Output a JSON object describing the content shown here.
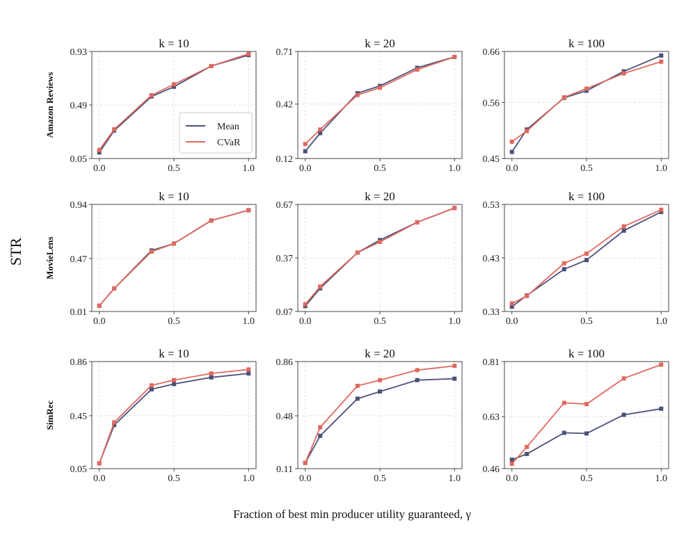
{
  "figure": {
    "ylabel": "STR",
    "xlabel": "Fraction of best min producer utility guaranteed, γ"
  },
  "colors": {
    "mean": "#4a5078",
    "cvar": "#e0685e",
    "grid": "#d9d9d9",
    "frame": "#444444"
  },
  "legend": {
    "items": [
      "Mean",
      "CVaR"
    ],
    "location": "lower-right of top-left panel"
  },
  "chart_data": [
    {
      "type": "line",
      "row_label": "Amazon Reviews",
      "title": "k = 10",
      "x": [
        0.0,
        0.1,
        0.35,
        0.5,
        0.75,
        1.0
      ],
      "xticks": [
        "0.0",
        "0.5",
        "1.0"
      ],
      "xlim": [
        -0.05,
        1.05
      ],
      "ylim": [
        0.05,
        0.93
      ],
      "yticks": [
        "0.05",
        "0.49",
        "0.93"
      ],
      "series": [
        {
          "name": "Mean",
          "values": [
            0.1,
            0.28,
            0.56,
            0.64,
            0.81,
            0.9
          ]
        },
        {
          "name": "CVaR",
          "values": [
            0.12,
            0.29,
            0.57,
            0.66,
            0.81,
            0.91
          ]
        }
      ]
    },
    {
      "type": "line",
      "row_label": "Amazon Reviews",
      "title": "k = 20",
      "x": [
        0.0,
        0.1,
        0.35,
        0.5,
        0.75,
        1.0
      ],
      "xticks": [
        "0.0",
        "0.5",
        "1.0"
      ],
      "xlim": [
        -0.05,
        1.05
      ],
      "ylim": [
        0.12,
        0.71
      ],
      "yticks": [
        "0.12",
        "0.42",
        "0.71"
      ],
      "series": [
        {
          "name": "Mean",
          "values": [
            0.16,
            0.26,
            0.48,
            0.52,
            0.62,
            0.68
          ]
        },
        {
          "name": "CVaR",
          "values": [
            0.2,
            0.28,
            0.47,
            0.51,
            0.61,
            0.68
          ]
        }
      ]
    },
    {
      "type": "line",
      "row_label": "Amazon Reviews",
      "title": "k = 100",
      "x": [
        0.0,
        0.1,
        0.35,
        0.5,
        0.75,
        1.0
      ],
      "xticks": [
        "0.0",
        "0.5",
        "1.0"
      ],
      "xlim": [
        -0.05,
        1.05
      ],
      "ylim": [
        0.45,
        0.66
      ],
      "yticks": [
        "0.45",
        "0.56",
        "0.66"
      ],
      "series": [
        {
          "name": "Mean",
          "values": [
            0.463,
            0.507,
            0.569,
            0.583,
            0.621,
            0.652
          ]
        },
        {
          "name": "CVaR",
          "values": [
            0.483,
            0.504,
            0.57,
            0.587,
            0.617,
            0.64
          ]
        }
      ]
    },
    {
      "type": "line",
      "row_label": "MovieLens",
      "title": "k = 10",
      "x": [
        0.0,
        0.1,
        0.35,
        0.5,
        0.75,
        1.0
      ],
      "xticks": [
        "0.0",
        "0.5",
        "1.0"
      ],
      "xlim": [
        -0.05,
        1.05
      ],
      "ylim": [
        0.01,
        0.94
      ],
      "yticks": [
        "0.01",
        "0.47",
        "0.94"
      ],
      "series": [
        {
          "name": "Mean",
          "values": [
            0.06,
            0.21,
            0.54,
            0.6,
            0.8,
            0.89
          ]
        },
        {
          "name": "CVaR",
          "values": [
            0.06,
            0.21,
            0.53,
            0.6,
            0.8,
            0.89
          ]
        }
      ]
    },
    {
      "type": "line",
      "row_label": "MovieLens",
      "title": "k = 20",
      "x": [
        0.0,
        0.1,
        0.35,
        0.5,
        0.75,
        1.0
      ],
      "xticks": [
        "0.0",
        "0.5",
        "1.0"
      ],
      "xlim": [
        -0.05,
        1.05
      ],
      "ylim": [
        0.07,
        0.67
      ],
      "yticks": [
        "0.07",
        "0.37",
        "0.67"
      ],
      "series": [
        {
          "name": "Mean",
          "values": [
            0.1,
            0.2,
            0.4,
            0.47,
            0.57,
            0.65
          ]
        },
        {
          "name": "CVaR",
          "values": [
            0.11,
            0.21,
            0.4,
            0.46,
            0.57,
            0.65
          ]
        }
      ]
    },
    {
      "type": "line",
      "row_label": "MovieLens",
      "title": "k = 100",
      "x": [
        0.0,
        0.1,
        0.35,
        0.5,
        0.75,
        1.0
      ],
      "xticks": [
        "0.0",
        "0.5",
        "1.0"
      ],
      "xlim": [
        -0.05,
        1.05
      ],
      "ylim": [
        0.33,
        0.53
      ],
      "yticks": [
        "0.33",
        "0.43",
        "0.53"
      ],
      "series": [
        {
          "name": "Mean",
          "values": [
            0.339,
            0.36,
            0.409,
            0.426,
            0.481,
            0.516
          ]
        },
        {
          "name": "CVaR",
          "values": [
            0.345,
            0.359,
            0.42,
            0.438,
            0.489,
            0.52
          ]
        }
      ]
    },
    {
      "type": "line",
      "row_label": "SimRec",
      "title": "k = 10",
      "x": [
        0.0,
        0.1,
        0.35,
        0.5,
        0.75,
        1.0
      ],
      "xticks": [
        "0.0",
        "0.5",
        "1.0"
      ],
      "xlim": [
        -0.05,
        1.05
      ],
      "ylim": [
        0.05,
        0.86
      ],
      "yticks": [
        "0.05",
        "0.45",
        "0.86"
      ],
      "series": [
        {
          "name": "Mean",
          "values": [
            0.09,
            0.38,
            0.65,
            0.69,
            0.74,
            0.77
          ]
        },
        {
          "name": "CVaR",
          "values": [
            0.09,
            0.4,
            0.68,
            0.72,
            0.77,
            0.8
          ]
        }
      ]
    },
    {
      "type": "line",
      "row_label": "SimRec",
      "title": "k = 20",
      "x": [
        0.0,
        0.1,
        0.35,
        0.5,
        0.75,
        1.0
      ],
      "xticks": [
        "0.0",
        "0.5",
        "1.0"
      ],
      "xlim": [
        -0.05,
        1.05
      ],
      "ylim": [
        0.11,
        0.86
      ],
      "yticks": [
        "0.11",
        "0.48",
        "0.86"
      ],
      "series": [
        {
          "name": "Mean",
          "values": [
            0.15,
            0.34,
            0.6,
            0.65,
            0.73,
            0.74
          ]
        },
        {
          "name": "CVaR",
          "values": [
            0.15,
            0.4,
            0.69,
            0.73,
            0.8,
            0.83
          ]
        }
      ]
    },
    {
      "type": "line",
      "row_label": "SimRec",
      "title": "k = 100",
      "x": [
        0.0,
        0.1,
        0.35,
        0.5,
        0.75,
        1.0
      ],
      "xticks": [
        "0.0",
        "0.5",
        "1.0"
      ],
      "xlim": [
        -0.05,
        1.05
      ],
      "ylim": [
        0.46,
        0.81
      ],
      "yticks": [
        "0.46",
        "0.63",
        "0.81"
      ],
      "series": [
        {
          "name": "Mean",
          "values": [
            0.489,
            0.508,
            0.577,
            0.575,
            0.636,
            0.656
          ]
        },
        {
          "name": "CVaR",
          "values": [
            0.476,
            0.531,
            0.675,
            0.671,
            0.755,
            0.8
          ]
        }
      ]
    }
  ]
}
